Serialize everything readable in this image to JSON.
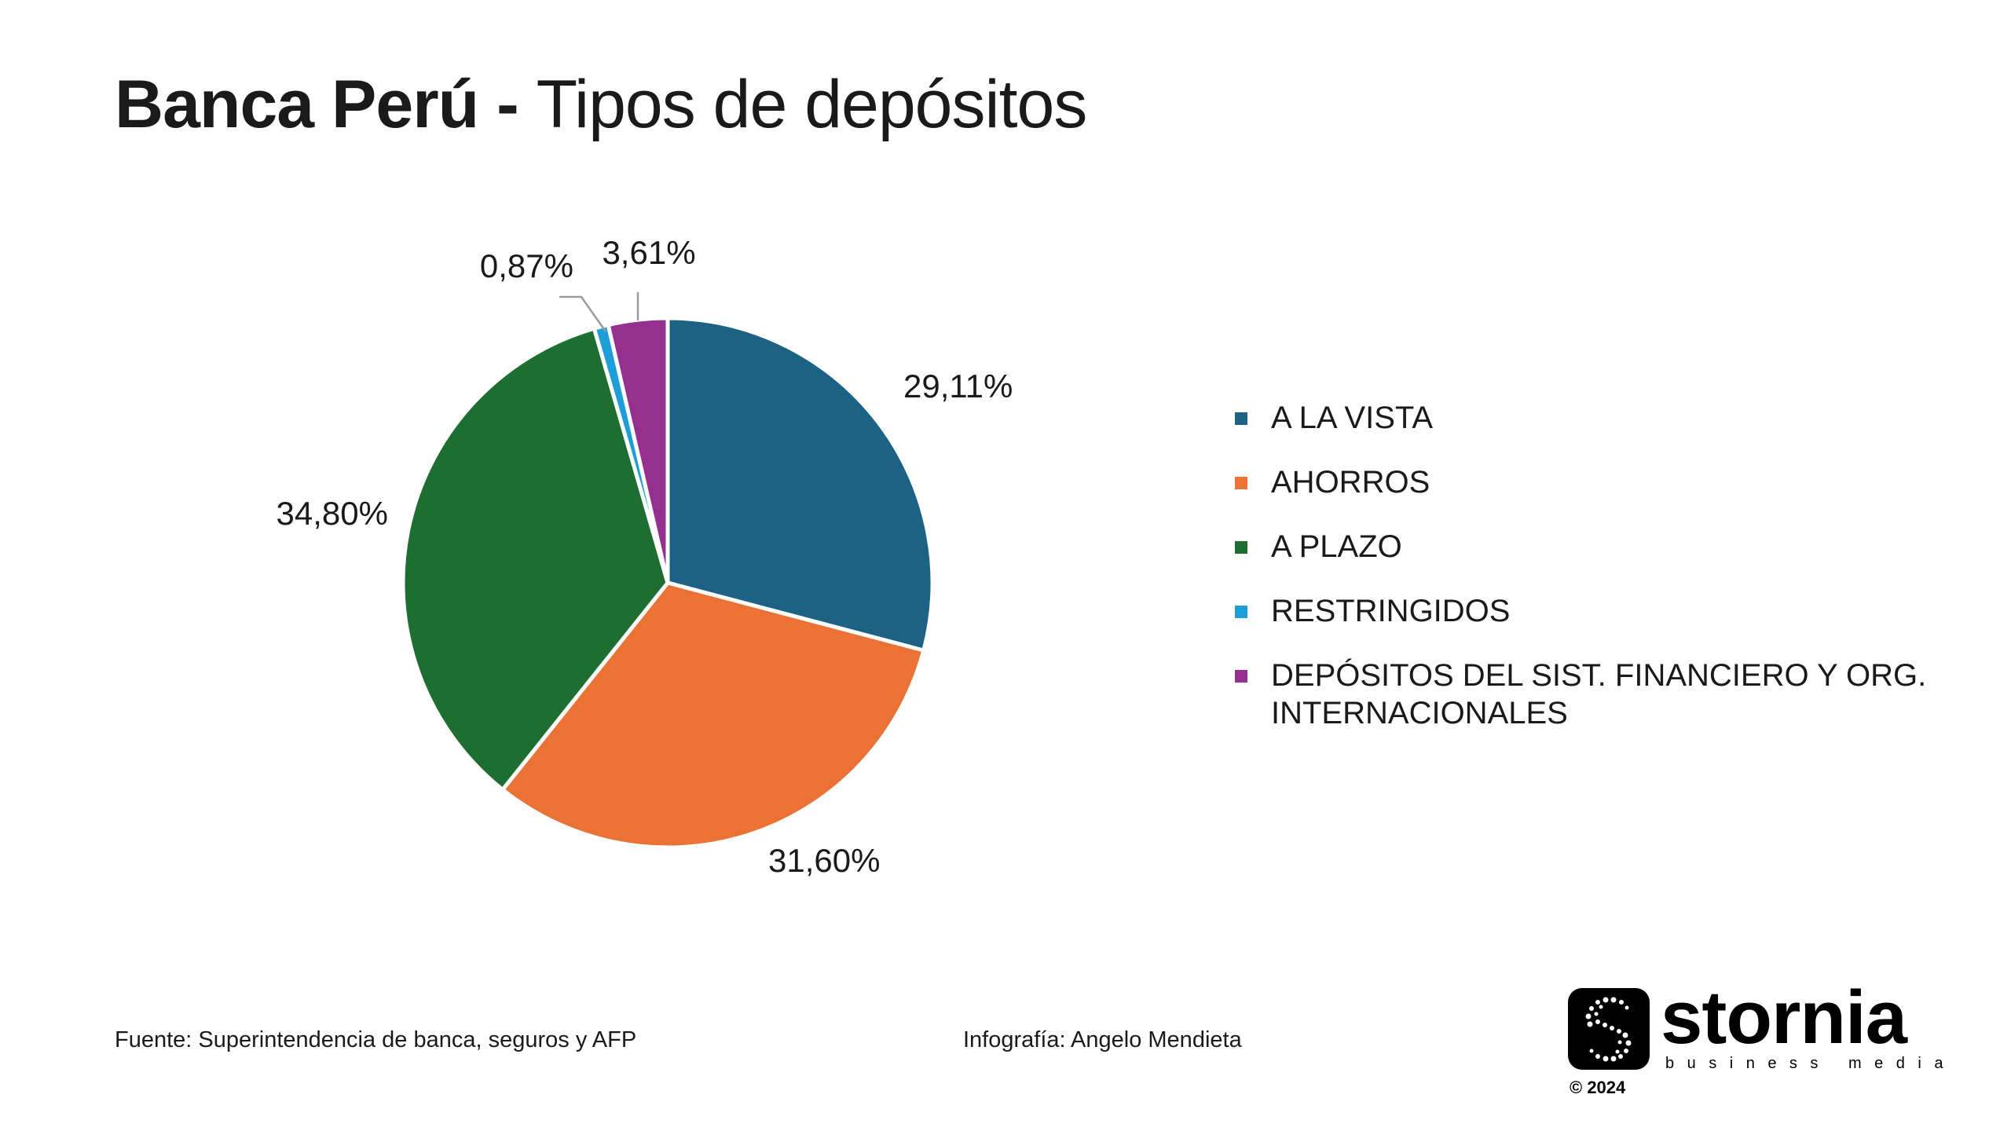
{
  "title": {
    "bold": "Banca Perú - ",
    "light": "Tipos de depósitos"
  },
  "chart_data": {
    "type": "pie",
    "title": "Banca Perú - Tipos de depósitos",
    "categories": [
      "A LA VISTA",
      "AHORROS",
      "A PLAZO",
      "RESTRINGIDOS",
      "DEPÓSITOS DEL SIST. FINANCIERO Y ORG. INTERNACIONALES"
    ],
    "values": [
      29.11,
      31.6,
      34.8,
      0.87,
      3.61
    ],
    "labels": [
      "29,11%",
      "31,60%",
      "34,80%",
      "0,87%",
      "3,61%"
    ],
    "colors": [
      "#1c6285",
      "#ea7234",
      "#1e6e32",
      "#1e9ed8",
      "#96308e"
    ],
    "legend_position": "right"
  },
  "footer": {
    "source": "Fuente: Superintendencia de banca, seguros y AFP",
    "credit": "Infografía: Angelo Mendieta"
  },
  "brand": {
    "name": "stornia",
    "tagline": "business media",
    "copyright": "© 2024"
  }
}
